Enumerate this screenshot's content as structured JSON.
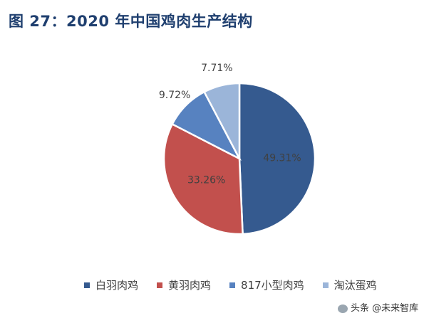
{
  "title": "图 27：2020 年中国鸡肉生产结构",
  "watermark": "头条 @未来智库",
  "colors": {
    "white_feather": "#355a8f",
    "yellow_feather": "#c2504d",
    "817_small": "#5782c0",
    "culled_layers": "#9bb5d9"
  },
  "chart_data": {
    "type": "pie",
    "title": "图 27：2020 年中国鸡肉生产结构",
    "categories": [
      "白羽肉鸡",
      "黄羽肉鸡",
      "817小型肉鸡",
      "淘汰蛋鸡"
    ],
    "values": [
      49.31,
      33.26,
      9.72,
      7.71
    ],
    "data_labels": [
      "49.31%",
      "33.26%",
      "9.72%",
      "7.71%"
    ],
    "colors": [
      "#355a8f",
      "#c2504d",
      "#5782c0",
      "#9bb5d9"
    ],
    "legend_position": "bottom"
  }
}
